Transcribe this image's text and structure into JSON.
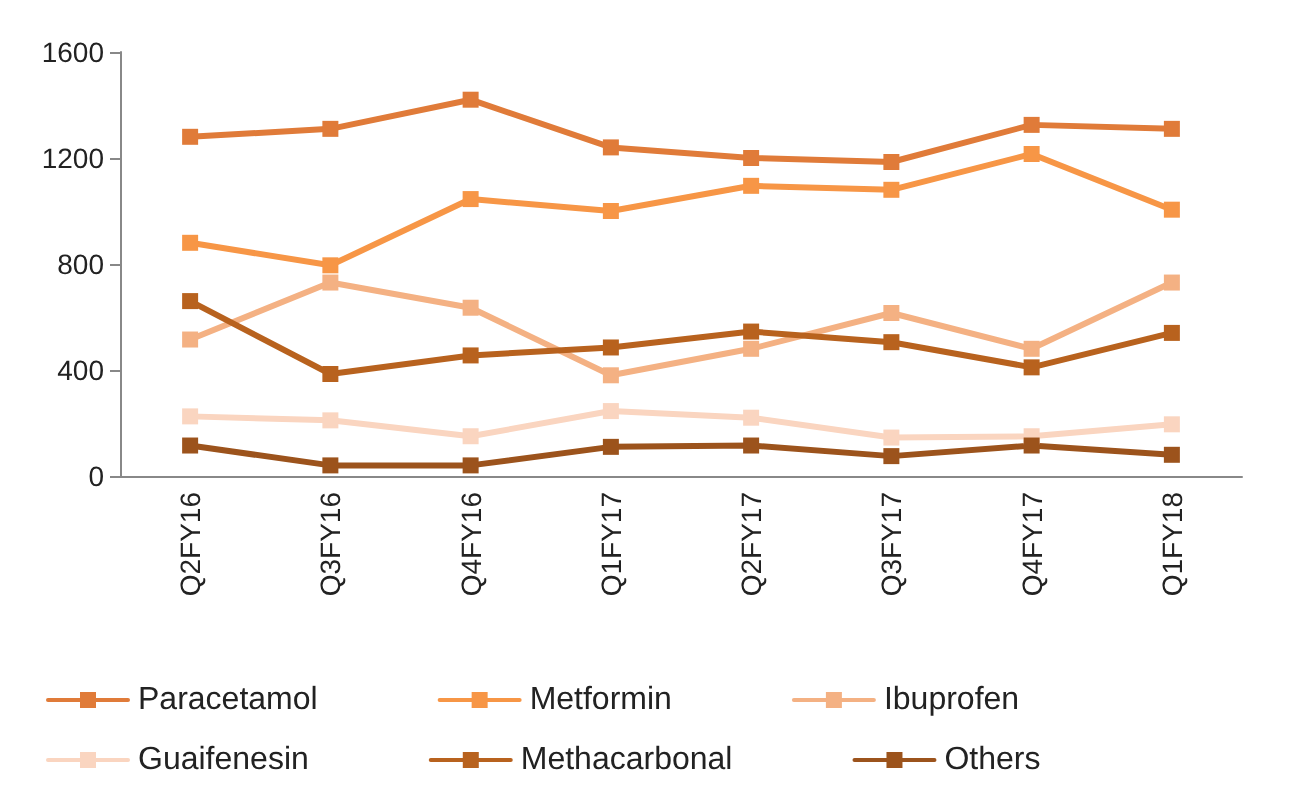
{
  "chart_data": {
    "type": "line",
    "categories": [
      "Q2FY16",
      "Q3FY16",
      "Q4FY16",
      "Q1FY17",
      "Q2FY17",
      "Q3FY17",
      "Q4FY17",
      "Q1FY18"
    ],
    "series": [
      {
        "name": "Paracetamol",
        "color": "#e07b39",
        "values": [
          1280,
          1310,
          1420,
          1240,
          1200,
          1185,
          1325,
          1310
        ]
      },
      {
        "name": "Metformin",
        "color": "#f79646",
        "values": [
          880,
          795,
          1045,
          1000,
          1095,
          1080,
          1215,
          1005
        ]
      },
      {
        "name": "Ibuprofen",
        "color": "#f4b183",
        "values": [
          515,
          730,
          635,
          380,
          480,
          615,
          480,
          730
        ]
      },
      {
        "name": "Guaifenesin",
        "color": "#fad5c0",
        "values": [
          225,
          210,
          150,
          245,
          220,
          145,
          150,
          195
        ]
      },
      {
        "name": "Methacarbonal",
        "color": "#b8621e",
        "values": [
          660,
          385,
          455,
          485,
          545,
          505,
          410,
          540
        ]
      },
      {
        "name": "Others",
        "color": "#9c531c",
        "values": [
          115,
          40,
          40,
          110,
          115,
          75,
          115,
          80
        ]
      }
    ],
    "ylim": [
      0,
      1600
    ],
    "yticks": [
      0,
      400,
      800,
      1200,
      1600
    ],
    "grid": false,
    "legend": "bottom",
    "marker": "square",
    "line_style": "solid"
  }
}
